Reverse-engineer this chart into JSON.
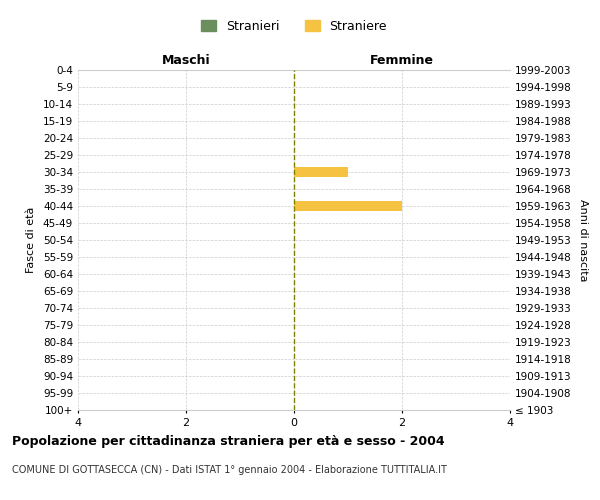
{
  "age_groups": [
    "100+",
    "95-99",
    "90-94",
    "85-89",
    "80-84",
    "75-79",
    "70-74",
    "65-69",
    "60-64",
    "55-59",
    "50-54",
    "45-49",
    "40-44",
    "35-39",
    "30-34",
    "25-29",
    "20-24",
    "15-19",
    "10-14",
    "5-9",
    "0-4"
  ],
  "birth_years": [
    "≤ 1903",
    "1904-1908",
    "1909-1913",
    "1914-1918",
    "1919-1923",
    "1924-1928",
    "1929-1933",
    "1934-1938",
    "1939-1943",
    "1944-1948",
    "1949-1953",
    "1954-1958",
    "1959-1963",
    "1964-1968",
    "1969-1973",
    "1974-1978",
    "1979-1983",
    "1984-1988",
    "1989-1993",
    "1994-1998",
    "1999-2003"
  ],
  "males": [
    0,
    0,
    0,
    0,
    0,
    0,
    0,
    0,
    0,
    0,
    0,
    0,
    0,
    0,
    0,
    0,
    0,
    0,
    0,
    0,
    0
  ],
  "females": [
    0,
    0,
    0,
    0,
    0,
    0,
    0,
    0,
    0,
    0,
    0,
    0,
    2,
    0,
    1,
    0,
    0,
    0,
    0,
    0,
    0
  ],
  "male_color": "#6b8e5e",
  "female_color": "#f5c242",
  "male_legend": "Stranieri",
  "female_legend": "Straniere",
  "xlim": 4,
  "title": "Popolazione per cittadinanza straniera per età e sesso - 2004",
  "subtitle": "COMUNE DI GOTTASECCA (CN) - Dati ISTAT 1° gennaio 2004 - Elaborazione TUTTITALIA.IT",
  "ylabel_left": "Fasce di età",
  "ylabel_right": "Anni di nascita",
  "xlabel_left": "Maschi",
  "xlabel_top_right": "Femmine",
  "background_color": "#ffffff",
  "grid_color": "#cccccc"
}
